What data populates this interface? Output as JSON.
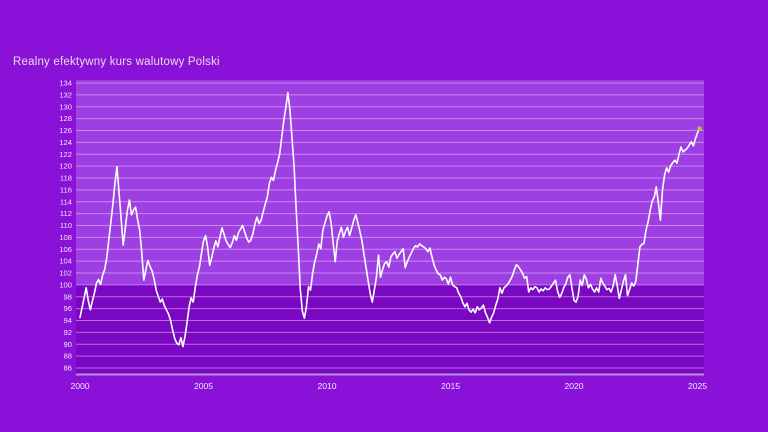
{
  "page": {
    "background": "#8a12d8",
    "title": "Realny efektywny kurs walutowy Polski",
    "title_color": "#e9dce3"
  },
  "chart_data": {
    "type": "line",
    "title": "Realny efektywny kurs walutowy Polski",
    "xlabel": "",
    "ylabel": "",
    "ylim": [
      86,
      134
    ],
    "xlim": [
      2000,
      2025.4
    ],
    "grid": "horizontal",
    "legend": "none",
    "baseline_value": 100,
    "x_ticks": [
      2000,
      2005,
      2010,
      2015,
      2020,
      2025
    ],
    "y_ticks": [
      134,
      132,
      130,
      128,
      126,
      124,
      122,
      120,
      118,
      116,
      114,
      112,
      110,
      108,
      106,
      104,
      102,
      100,
      98,
      96,
      94,
      92,
      90,
      88,
      86
    ],
    "colors": {
      "series_line": "#ffffff",
      "end_marker": "#a0cc2f",
      "plot_bg_above_baseline": "#9e3fe3",
      "plot_bg_below_baseline": "#7a07c2",
      "gridline": "rgba(238,212,252,0.5)",
      "axis_line": "#bb8fd9",
      "tick_label": "#f0e7f7"
    },
    "series": [
      {
        "name": "Realny efektywny kurs walutowy Polski",
        "frequency": "monthly",
        "start_year": 2000,
        "start_month": 1,
        "values": [
          94.5,
          96.2,
          97.8,
          99.5,
          97.4,
          95.8,
          97.2,
          98.6,
          100.3,
          100.9,
          100.1,
          101.6,
          102.6,
          104.6,
          107.6,
          110.6,
          113.6,
          117.2,
          119.9,
          115.4,
          111.0,
          106.7,
          109.6,
          112.4,
          114.3,
          111.8,
          112.6,
          113.1,
          111.0,
          109.2,
          105.4,
          100.8,
          102.6,
          104.1,
          103.1,
          102.4,
          101.0,
          99.1,
          98.1,
          97.1,
          97.6,
          96.5,
          95.8,
          95.1,
          94.0,
          92.4,
          91.0,
          90.2,
          89.9,
          91.1,
          89.6,
          91.3,
          93.6,
          96.3,
          97.8,
          97.1,
          99.6,
          101.6,
          103.0,
          105.2,
          107.4,
          108.3,
          106.4,
          103.3,
          104.6,
          106.2,
          107.4,
          106.4,
          108.1,
          109.6,
          108.5,
          107.4,
          106.8,
          106.3,
          107.1,
          108.3,
          107.5,
          108.8,
          109.4,
          110.0,
          108.9,
          107.9,
          107.2,
          107.5,
          108.6,
          110.3,
          111.4,
          110.3,
          110.9,
          112.3,
          113.6,
          114.8,
          117.1,
          118.1,
          117.6,
          119.3,
          120.6,
          122.1,
          124.8,
          127.7,
          129.8,
          132.4,
          129.5,
          124.8,
          119.9,
          113.0,
          106.4,
          99.5,
          95.6,
          94.4,
          96.3,
          99.7,
          99.1,
          101.9,
          103.8,
          105.2,
          106.9,
          106.1,
          109.2,
          110.4,
          111.6,
          112.3,
          110.4,
          107.0,
          103.9,
          107.4,
          108.6,
          109.7,
          108.0,
          109.0,
          109.7,
          108.3,
          109.6,
          110.9,
          111.8,
          110.4,
          109.0,
          107.4,
          105.0,
          102.9,
          100.6,
          98.5,
          97.1,
          99.1,
          101.3,
          105.0,
          101.3,
          102.6,
          103.6,
          103.9,
          103.0,
          104.7,
          105.2,
          105.6,
          104.5,
          105.1,
          105.6,
          106.1,
          102.9,
          103.9,
          104.7,
          105.4,
          106.1,
          106.6,
          106.4,
          106.9,
          106.6,
          106.4,
          106.1,
          105.6,
          106.2,
          104.7,
          103.4,
          102.5,
          101.9,
          101.7,
          100.8,
          101.3,
          101.0,
          100.1,
          101.3,
          100.0,
          99.7,
          99.5,
          98.6,
          98.0,
          97.0,
          96.3,
          96.9,
          95.8,
          95.4,
          95.9,
          95.3,
          96.3,
          95.8,
          96.1,
          96.6,
          95.3,
          94.5,
          93.6,
          94.6,
          95.3,
          96.6,
          97.6,
          99.5,
          98.6,
          99.5,
          99.8,
          100.2,
          100.8,
          101.5,
          102.5,
          103.4,
          103.1,
          102.5,
          102.0,
          101.1,
          101.4,
          98.8,
          99.5,
          99.2,
          99.7,
          99.5,
          98.8,
          99.3,
          99.0,
          99.5,
          99.2,
          99.3,
          99.8,
          100.3,
          100.8,
          99.0,
          97.9,
          98.5,
          99.5,
          100.2,
          101.3,
          101.7,
          99.5,
          97.4,
          97.1,
          98.1,
          100.8,
          99.9,
          101.7,
          101.0,
          99.5,
          100.1,
          99.3,
          98.8,
          99.5,
          98.8,
          101.1,
          100.3,
          99.8,
          99.2,
          99.4,
          98.8,
          99.8,
          101.7,
          99.9,
          97.7,
          99.1,
          100.6,
          101.7,
          98.2,
          99.2,
          100.3,
          99.8,
          100.6,
          103.4,
          106.4,
          106.8,
          107.0,
          109.2,
          110.6,
          112.6,
          114.1,
          114.8,
          116.5,
          113.8,
          110.9,
          116.0,
          118.5,
          119.7,
          119.0,
          120.1,
          120.6,
          121.0,
          120.5,
          122.0,
          123.2,
          122.4,
          122.7,
          123.0,
          123.6,
          124.1,
          123.4,
          124.6,
          125.6,
          126.3
        ]
      }
    ]
  }
}
